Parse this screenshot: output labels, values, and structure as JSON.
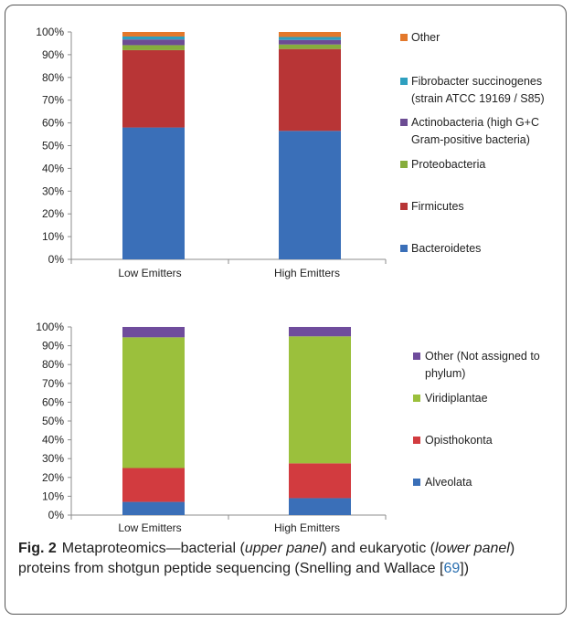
{
  "chart_data": [
    {
      "type": "bar",
      "stacked": true,
      "percent": true,
      "categories": [
        "Low Emitters",
        "High Emitters"
      ],
      "ylim": [
        0,
        100
      ],
      "yticks": [
        "0%",
        "10%",
        "20%",
        "30%",
        "40%",
        "50%",
        "60%",
        "70%",
        "80%",
        "90%",
        "100%"
      ],
      "legend_position": "right",
      "series": [
        {
          "name": "Bacteroidetes",
          "color": "#3a6fb8",
          "values": [
            58,
            56.5
          ]
        },
        {
          "name": "Firmicutes",
          "color": "#b83536",
          "values": [
            34,
            36
          ]
        },
        {
          "name": "Proteobacteria",
          "color": "#86ad3c",
          "values": [
            2.2,
            2
          ]
        },
        {
          "name": "Actinobacteria (high G+C Gram-positive bacteria)",
          "color": "#6c4c93",
          "values": [
            2.5,
            2
          ]
        },
        {
          "name": "Fibrobacter succinogenes (strain ATCC 19169 / S85)",
          "color": "#2e9fbf",
          "values": [
            1.3,
            1.3
          ]
        },
        {
          "name": "Other",
          "color": "#e3782b",
          "values": [
            2,
            2.2
          ]
        }
      ],
      "legend_lines": [
        [
          "Other"
        ],
        [
          "Fibrobacter succinogenes",
          "(strain ATCC 19169 / S85)"
        ],
        [
          "Actinobacteria (high G+C",
          "Gram-positive bacteria)"
        ],
        [
          "Proteobacteria"
        ],
        [
          "Firmicutes"
        ],
        [
          "Bacteroidetes"
        ]
      ]
    },
    {
      "type": "bar",
      "stacked": true,
      "percent": true,
      "categories": [
        "Low Emitters",
        "High Emitters"
      ],
      "ylim": [
        0,
        100
      ],
      "yticks": [
        "0%",
        "10%",
        "20%",
        "30%",
        "40%",
        "50%",
        "60%",
        "70%",
        "80%",
        "90%",
        "100%"
      ],
      "legend_position": "right",
      "series": [
        {
          "name": "Alveolata",
          "color": "#3a6fb8",
          "values": [
            7,
            9
          ]
        },
        {
          "name": "Opisthokonta",
          "color": "#d23b3f",
          "values": [
            18,
            18.5
          ]
        },
        {
          "name": "Viridiplantae",
          "color": "#9bc03c",
          "values": [
            69.5,
            67.5
          ]
        },
        {
          "name": "Other (Not assigned to phylum)",
          "color": "#6f4c9c",
          "values": [
            5.5,
            5
          ]
        }
      ],
      "legend_lines": [
        [
          "Other (Not assigned to",
          "phylum)"
        ],
        [
          "Viridiplantae"
        ],
        [
          "Opisthokonta"
        ],
        [
          "Alveolata"
        ]
      ]
    }
  ],
  "caption": {
    "fig_label": "Fig. 2",
    "text_1": "Metaproteomics—bacterial (",
    "upper": "upper panel",
    "text_2": ") and eukaryotic (",
    "lower": "lower panel",
    "text_3": ") proteins from shotgun peptide sequencing (Snelling and Wallace [",
    "ref": "69",
    "text_4": "])"
  }
}
